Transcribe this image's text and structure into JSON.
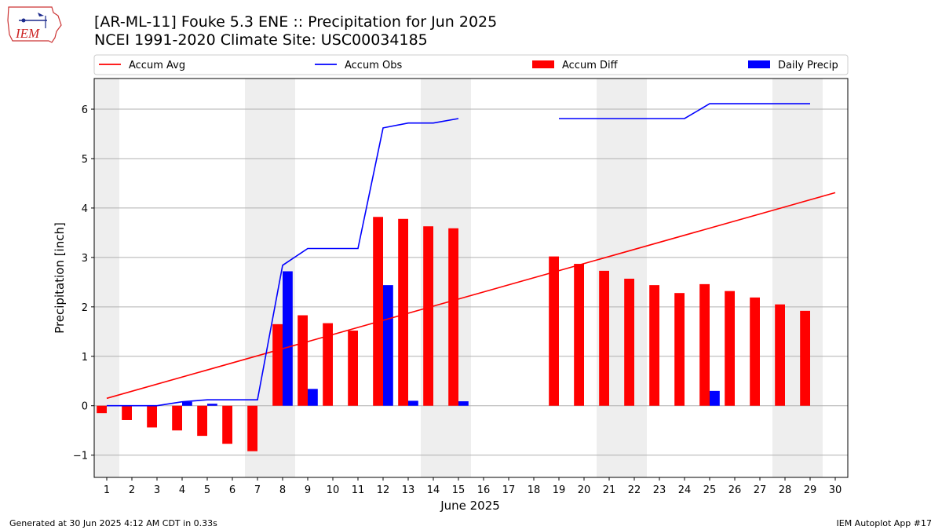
{
  "header": {
    "title": "[AR-ML-11] Fouke 5.3 ENE :: Precipitation for Jun 2025",
    "subtitle": "NCEI 1991-2020 Climate Site: USC00034185",
    "logo_text": "IEM"
  },
  "footer": {
    "generated": "Generated at 30 Jun 2025 4:12 AM CDT in 0.33s",
    "app": "IEM Autoplot App #17"
  },
  "chart_data": {
    "type": "bar",
    "xlabel": "June 2025",
    "ylabel": "Precipitation [inch]",
    "xlim": [
      0.5,
      30.5
    ],
    "ylim": [
      -1.45,
      6.62
    ],
    "x_ticks": [
      1,
      2,
      3,
      4,
      5,
      6,
      7,
      8,
      9,
      10,
      11,
      12,
      13,
      14,
      15,
      16,
      17,
      18,
      19,
      20,
      21,
      22,
      23,
      24,
      25,
      26,
      27,
      28,
      29,
      30
    ],
    "y_ticks": [
      -1,
      0,
      1,
      2,
      3,
      4,
      5,
      6
    ],
    "y_tick_labels": [
      "−1",
      "0",
      "1",
      "2",
      "3",
      "4",
      "5",
      "6"
    ],
    "grid": "horizontal",
    "legend_position": "top",
    "weekend_shading": [
      [
        0.5,
        1.5
      ],
      [
        6.5,
        8.5
      ],
      [
        13.5,
        15.5
      ],
      [
        20.5,
        22.5
      ],
      [
        27.5,
        29.5
      ]
    ],
    "colors": {
      "accum_avg": "#ff0000",
      "accum_obs": "#0000ff",
      "accum_diff": "#ff0000",
      "daily_precip": "#0000ff",
      "weekend": "#eeeeee",
      "grid": "#b0b0b0"
    },
    "series": [
      {
        "name": "Accum Avg",
        "type": "line",
        "x": [
          1,
          30
        ],
        "values": [
          0.15,
          4.31
        ]
      },
      {
        "name": "Accum Obs",
        "type": "line",
        "x": [
          1,
          2,
          3,
          4,
          5,
          6,
          7,
          8,
          9,
          10,
          11,
          12,
          13,
          14,
          15,
          16,
          17,
          18,
          19,
          20,
          21,
          22,
          23,
          24,
          25,
          26,
          27,
          28,
          29
        ],
        "values": [
          0.0,
          0.0,
          0.0,
          0.08,
          0.12,
          0.12,
          0.12,
          2.84,
          3.18,
          3.18,
          3.18,
          5.62,
          5.72,
          5.72,
          5.81,
          null,
          null,
          null,
          5.81,
          5.81,
          5.81,
          5.81,
          5.81,
          5.81,
          6.11,
          6.11,
          6.11,
          6.11,
          6.11
        ]
      },
      {
        "name": "Accum Diff",
        "type": "bar",
        "x": [
          1,
          2,
          3,
          4,
          5,
          6,
          7,
          8,
          9,
          10,
          11,
          12,
          13,
          14,
          15,
          16,
          17,
          18,
          19,
          20,
          21,
          22,
          23,
          24,
          25,
          26,
          27,
          28,
          29
        ],
        "values": [
          -0.15,
          -0.29,
          -0.44,
          -0.5,
          -0.61,
          -0.77,
          -0.92,
          1.65,
          1.83,
          1.67,
          1.52,
          3.82,
          3.78,
          3.63,
          3.59,
          null,
          null,
          null,
          3.02,
          2.87,
          2.73,
          2.57,
          2.44,
          2.28,
          2.46,
          2.32,
          2.19,
          2.05,
          1.92
        ]
      },
      {
        "name": "Daily Precip",
        "type": "bar",
        "x": [
          4,
          5,
          8,
          9,
          12,
          13,
          15,
          25
        ],
        "values": [
          0.08,
          0.04,
          2.72,
          0.34,
          2.44,
          0.1,
          0.09,
          0.3
        ]
      }
    ]
  }
}
